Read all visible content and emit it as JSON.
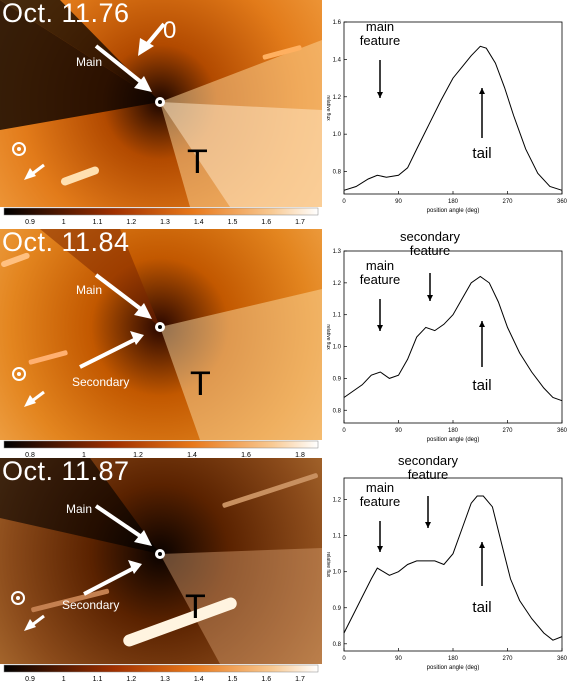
{
  "panels": [
    {
      "date": "Oct. 11.76",
      "labels": {
        "main": "Main",
        "zero": "0",
        "tail_letter": "T"
      },
      "colorbar_ticks": [
        "0.9",
        "1",
        "1.1",
        "1.2",
        "1.3",
        "1.4",
        "1.5",
        "1.6",
        "1.7"
      ],
      "annotations": {
        "main": "main\nfeature",
        "tail": "tail"
      }
    },
    {
      "date": "Oct. 11.84",
      "labels": {
        "main": "Main",
        "secondary": "Secondary",
        "tail_letter": "T"
      },
      "colorbar_ticks": [
        "0.8",
        "1",
        "1.2",
        "1.4",
        "1.6",
        "1.8"
      ],
      "annotations": {
        "main": "main\nfeature",
        "secondary": "secondary\nfeature",
        "tail": "tail"
      }
    },
    {
      "date": "Oct. 11.87",
      "labels": {
        "main": "Main",
        "secondary": "Secondary",
        "tail_letter": "T"
      },
      "colorbar_ticks": [
        "0.9",
        "1",
        "1.1",
        "1.2",
        "1.3",
        "1.4",
        "1.5",
        "1.6",
        "1.7"
      ],
      "annotations": {
        "main": "main\nfeature",
        "secondary": "secondary\nfeature",
        "tail": "tail"
      }
    }
  ],
  "chart_data": [
    {
      "type": "line",
      "xlabel": "position angle (deg)",
      "ylabel": "relative flux",
      "xlim": [
        0,
        360
      ],
      "ylim": [
        0.68,
        1.6
      ],
      "xticks": [
        0,
        90,
        180,
        270,
        360
      ],
      "yticks": [
        0.8,
        1.0,
        1.2,
        1.4,
        1.6
      ],
      "x": [
        0,
        20,
        40,
        55,
        70,
        90,
        105,
        120,
        140,
        160,
        180,
        195,
        210,
        225,
        235,
        250,
        265,
        280,
        300,
        320,
        340,
        360
      ],
      "y": [
        0.7,
        0.72,
        0.76,
        0.78,
        0.77,
        0.78,
        0.82,
        0.92,
        1.05,
        1.18,
        1.3,
        1.36,
        1.42,
        1.47,
        1.46,
        1.38,
        1.25,
        1.1,
        0.92,
        0.79,
        0.72,
        0.7
      ]
    },
    {
      "type": "line",
      "xlabel": "position angle (deg)",
      "ylabel": "relative flux",
      "xlim": [
        0,
        360
      ],
      "ylim": [
        0.76,
        1.3
      ],
      "xticks": [
        0,
        90,
        180,
        270,
        360
      ],
      "yticks": [
        0.8,
        0.9,
        1.0,
        1.1,
        1.2,
        1.3
      ],
      "x": [
        0,
        15,
        30,
        45,
        60,
        75,
        90,
        105,
        120,
        135,
        150,
        165,
        180,
        195,
        210,
        225,
        240,
        255,
        270,
        290,
        310,
        330,
        345,
        360
      ],
      "y": [
        0.84,
        0.86,
        0.88,
        0.91,
        0.92,
        0.9,
        0.91,
        0.96,
        1.03,
        1.06,
        1.05,
        1.07,
        1.1,
        1.15,
        1.2,
        1.22,
        1.2,
        1.14,
        1.06,
        0.98,
        0.92,
        0.87,
        0.84,
        0.83
      ]
    },
    {
      "type": "line",
      "xlabel": "position angle (deg)",
      "ylabel": "relative flux",
      "xlim": [
        0,
        360
      ],
      "ylim": [
        0.78,
        1.26
      ],
      "xticks": [
        0,
        90,
        180,
        270,
        360
      ],
      "yticks": [
        0.8,
        0.9,
        1.0,
        1.1,
        1.2
      ],
      "x": [
        0,
        15,
        30,
        45,
        55,
        65,
        75,
        90,
        105,
        120,
        135,
        150,
        165,
        180,
        195,
        210,
        220,
        230,
        245,
        260,
        275,
        290,
        310,
        330,
        345,
        360
      ],
      "y": [
        0.83,
        0.88,
        0.93,
        0.98,
        1.01,
        1.0,
        0.99,
        1.0,
        1.02,
        1.03,
        1.03,
        1.03,
        1.02,
        1.05,
        1.12,
        1.19,
        1.21,
        1.21,
        1.18,
        1.08,
        0.98,
        0.92,
        0.87,
        0.83,
        0.81,
        0.82
      ]
    }
  ]
}
